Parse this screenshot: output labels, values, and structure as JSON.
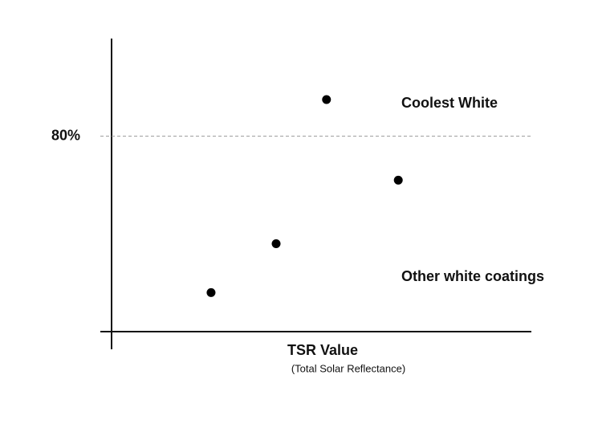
{
  "chart_data": {
    "type": "scatter",
    "x_label": "TSR Value",
    "x_sublabel": "(Total Solar Reflectance)",
    "x": [
      23.7,
      39.2,
      51.2,
      68.3
    ],
    "values": [
      16,
      36,
      95,
      62
    ],
    "color": "#000000",
    "xlim": [
      0,
      100
    ],
    "ylim": [
      0,
      120
    ],
    "yticks": [
      {
        "value": 80,
        "label": "80%"
      }
    ],
    "grid": true,
    "annotations": [
      "Coolest White",
      "Other white coatings"
    ]
  }
}
